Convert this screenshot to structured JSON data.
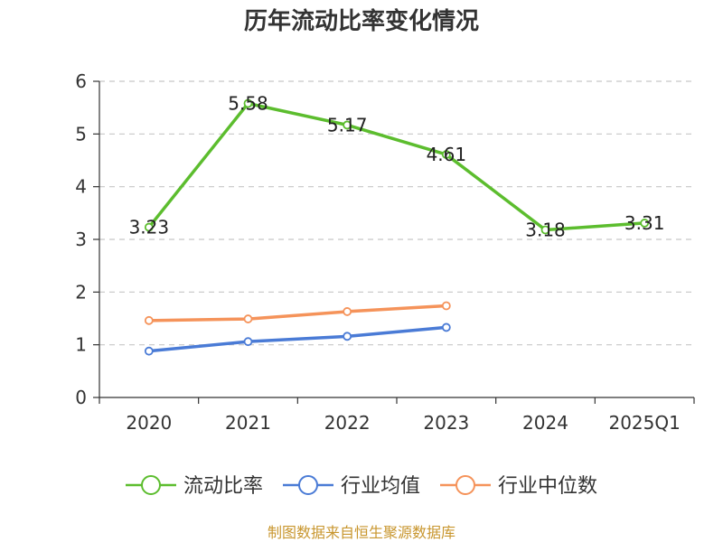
{
  "chart_data": {
    "type": "line",
    "title": "历年流动比率变化情况",
    "categories": [
      "2020",
      "2021",
      "2022",
      "2023",
      "2024",
      "2025Q1"
    ],
    "ylim": [
      0,
      6
    ],
    "yticks": [
      0,
      1,
      2,
      3,
      4,
      5,
      6
    ],
    "grid": true,
    "legend_position": "bottom",
    "series": [
      {
        "name": "流动比率",
        "color": "#5cbd2e",
        "values": [
          3.23,
          5.58,
          5.17,
          4.61,
          3.18,
          3.31
        ],
        "data_labels": [
          "3.23",
          "5.58",
          "5.17",
          "4.61",
          "3.18",
          "3.31"
        ]
      },
      {
        "name": "行业均值",
        "color": "#4a7bd6",
        "values": [
          0.88,
          1.06,
          1.16,
          1.33,
          null,
          null
        ]
      },
      {
        "name": "行业中位数",
        "color": "#f5935a",
        "values": [
          1.46,
          1.49,
          1.63,
          1.74,
          null,
          null
        ]
      }
    ],
    "source": "制图数据来自恒生聚源数据库"
  }
}
